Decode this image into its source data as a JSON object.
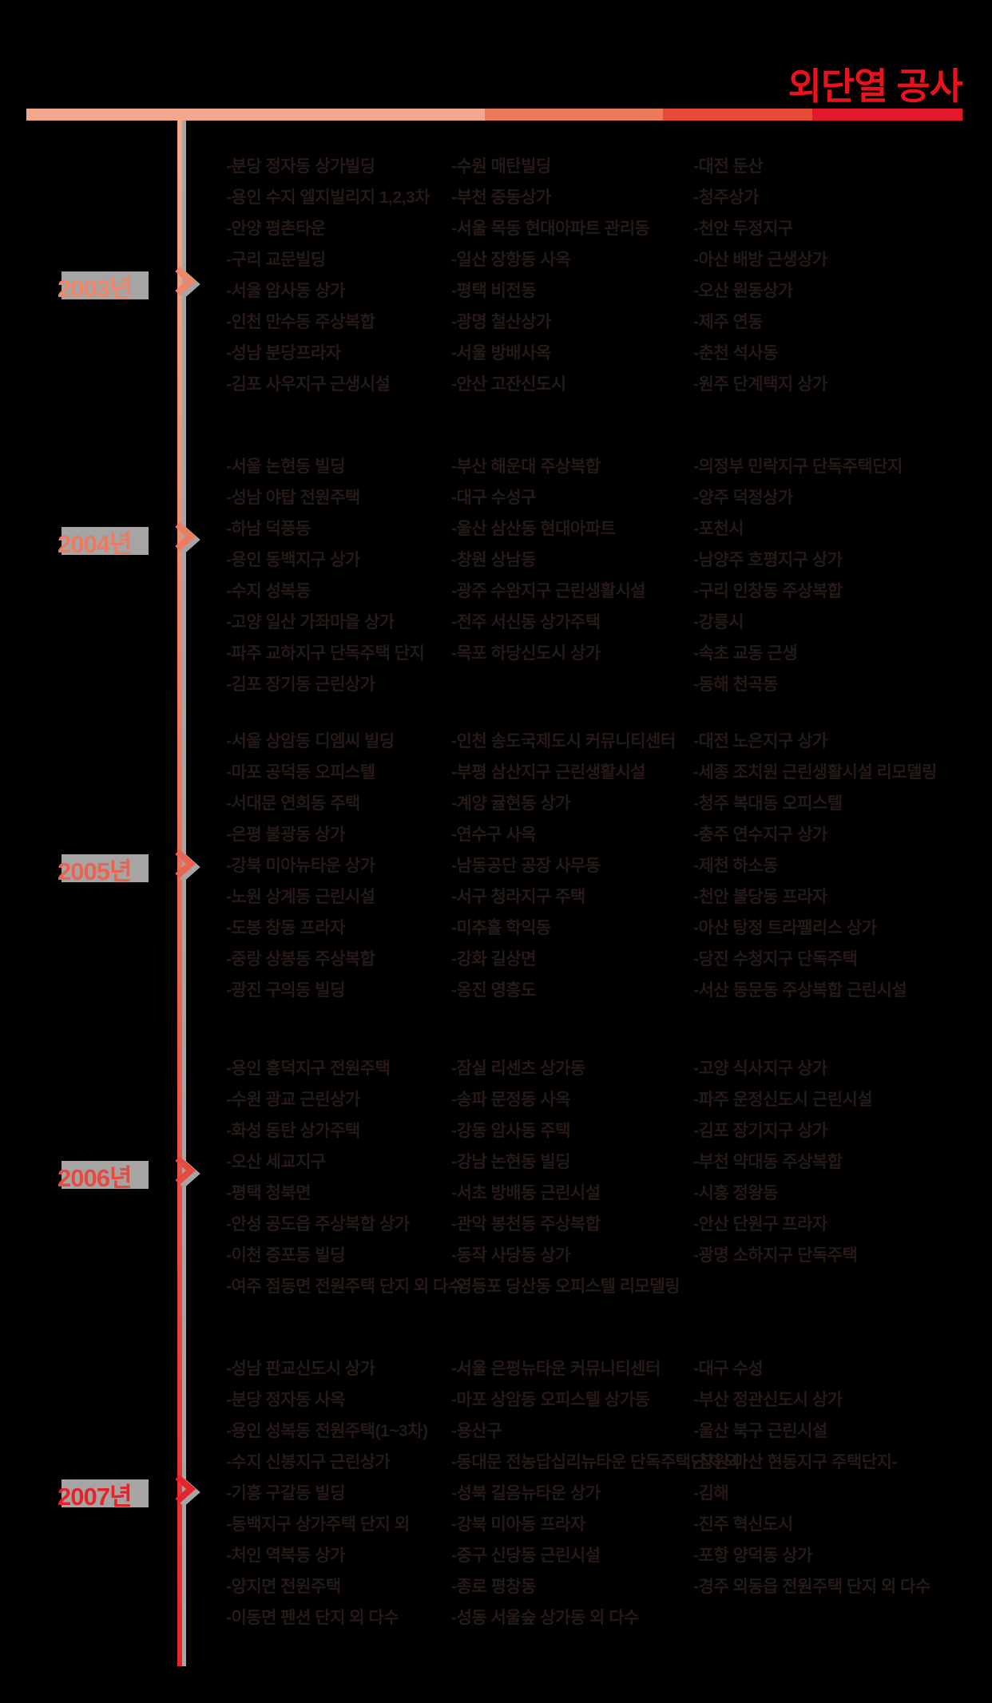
{
  "title": "외단열 공사",
  "colors": {
    "title": "#e8131c",
    "gray": "#a7a5a3",
    "item_text": "#251a16",
    "bar_segments": [
      "#f5a78d",
      "#ed795b",
      "#e64b38",
      "#e5172a"
    ],
    "year_labels": [
      "#f08667",
      "#ee7a5f",
      "#ec6450",
      "#e94a40",
      "#e3242b"
    ]
  },
  "bar": {
    "segment_widths_pct": [
      49,
      19,
      16,
      16
    ]
  },
  "sections": [
    {
      "year": "2003년",
      "columns": [
        [
          "-분당 정자동 상가빌딩",
          "-용인 수지 엘지빌리지 1,2,3차",
          "-안양 평촌타운",
          "-구리 교문빌딩",
          "-서울 암사동 상가",
          "-인천 만수동 주상복합",
          "-성남 분당프라자",
          "-김포 사우지구 근생시설"
        ],
        [
          "-수원 매탄빌딩",
          "-부천 중동상가",
          "-서울 목동 현대아파트 관리동",
          "-일산 장항동 사옥",
          "-평택 비전동",
          "-광명 철산상가",
          "-서울 방배사옥",
          "-안산 고잔신도시"
        ],
        [
          "-대전 둔산",
          "-청주상가",
          "-천안 두정지구",
          "-아산 배방 근생상가",
          "-오산 원동상가",
          "-제주 연동",
          "-춘천 석사동",
          "-원주 단계택지 상가"
        ]
      ]
    },
    {
      "year": "2004년",
      "columns": [
        [
          "-서울 논현동 빌딩",
          "-성남 야탑 전원주택",
          "-하남 덕풍동",
          "-용인 동백지구 상가",
          "-수지 성복동",
          "-고양 일산 가좌마을 상가",
          "-파주 교하지구 단독주택 단지",
          "-김포 장기동 근린상가"
        ],
        [
          "-부산 해운대 주상복합",
          "-대구 수성구",
          "-울산 삼산동 현대아파트",
          "-창원 상남동",
          "-광주 수완지구 근린생활시설",
          "-전주 서신동 상가주택",
          "-목포 하당신도시 상가"
        ],
        [
          "-의정부 민락지구 단독주택단지",
          "-양주 덕정상가",
          "-포천시",
          "-남양주 호평지구 상가",
          "-구리 인창동 주상복합",
          "-강릉시",
          "-속초 교동 근생",
          "-동해 천곡동"
        ]
      ]
    },
    {
      "year": "2005년",
      "columns": [
        [
          "-서울 상암동 디엠씨 빌딩",
          "-마포 공덕동 오피스텔",
          "-서대문 연희동 주택",
          "-은평 불광동 상가",
          "-강북 미아뉴타운 상가",
          "-노원 상계동 근린시설",
          "-도봉 창동 프라자",
          "-중랑 상봉동 주상복합",
          "-광진 구의동 빌딩"
        ],
        [
          "-인천 송도국제도시 커뮤니티센터",
          "-부평 삼산지구 근린생활시설",
          "-계양 귤현동 상가",
          "-연수구 사옥",
          "-남동공단 공장 사무동",
          "-서구 청라지구 주택",
          "-미추홀 학익동",
          "-강화 길상면",
          "-옹진 영흥도"
        ],
        [
          "-대전 노은지구 상가",
          "-세종 조치원 근린생활시설 리모델링",
          "-청주 복대동 오피스텔",
          "-충주 연수지구 상가",
          "-제천 하소동",
          "-천안 불당동 프라자",
          "-아산 탕정 트라팰리스 상가",
          "-당진 수청지구 단독주택",
          "-서산 동문동 주상복합 근린시설"
        ]
      ]
    },
    {
      "year": "2006년",
      "columns": [
        [
          "-용인 흥덕지구 전원주택",
          "-수원 광교 근린상가",
          "-화성 동탄 상가주택",
          "-오산 세교지구",
          "-평택 청북면",
          "-안성 공도읍 주상복합 상가",
          "-이천 증포동 빌딩",
          "-여주 점동면 전원주택 단지 외 다수"
        ],
        [
          "-잠실 리센츠 상가동",
          "-송파 문정동 사옥",
          "-강동 암사동 주택",
          "-강남 논현동 빌딩",
          "-서초 방배동 근린시설",
          "-관악 봉천동 주상복합",
          "-동작 사당동 상가",
          "-영등포 당산동 오피스텔 리모델링"
        ],
        [
          "-고양 식사지구 상가",
          "-파주 운정신도시 근린시설",
          "-김포 장기지구 상가",
          "-부천 약대동 주상복합",
          "-시흥 정왕동",
          "-안산 단원구 프라자",
          "-광명 소하지구 단독주택"
        ]
      ]
    },
    {
      "year": "2007년",
      "columns": [
        [
          "-성남 판교신도시 상가",
          "-분당 정자동 사옥",
          "-용인 성복동 전원주택(1~3차)",
          "-수지 신봉지구 근린상가",
          "-기흥 구갈동 빌딩",
          "-동백지구 상가주택 단지 외",
          "-처인 역북동 상가",
          "-양지면 전원주택",
          "-이동면 펜션 단지 외 다수"
        ],
        [
          "-서울 은평뉴타운 커뮤니티센터",
          "-마포 상암동 오피스텔 상가동",
          "-용산구",
          "-동대문 전농답십리뉴타운 단독주택단지 외",
          "-성북 길음뉴타운 상가",
          "-강북 미아동 프라자",
          "-중구 신당동 근린시설",
          "-종로 평창동",
          "-성동 서울숲 상가동 외 다수"
        ],
        [
          "-대구 수성",
          "-부산 정관신도시 상가",
          "-울산 북구 근린시설",
          "-창원 마산 현동지구 주택단지-",
          "-김해",
          "-진주 혁신도시",
          "-포항 양덕동 상가",
          "-경주 외동읍 전원주택 단지 외 다수"
        ]
      ]
    }
  ]
}
